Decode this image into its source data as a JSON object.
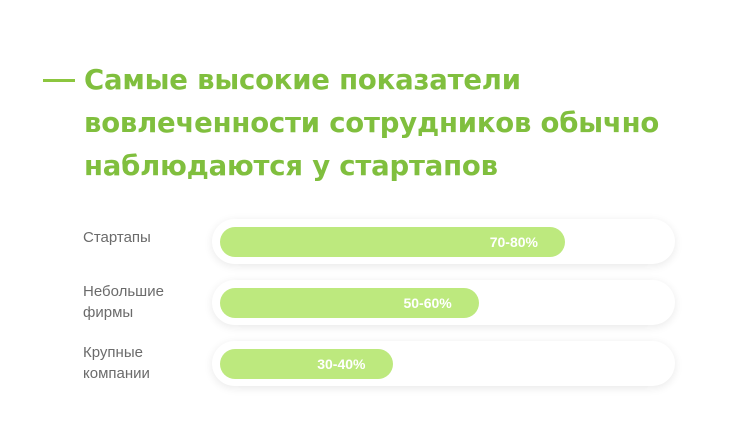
{
  "title": {
    "lines": [
      "Самые высокие показатели",
      "вовлеченности сотрудников обычно",
      "наблюдаются у стартапов"
    ]
  },
  "colors": {
    "accent": "#80bf3e",
    "bar": "#bde97e",
    "label": "#6b6b6b",
    "bar_text": "#ffffff"
  },
  "chart_data": {
    "type": "bar",
    "orientation": "horizontal",
    "categories": [
      "Стартапы",
      "Небольшие фирмы",
      "Крупные компании"
    ],
    "value_labels": [
      "70-80%",
      "50-60%",
      "30-40%"
    ],
    "values": [
      75,
      55,
      35
    ],
    "ranges": [
      [
        70,
        80
      ],
      [
        50,
        60
      ],
      [
        30,
        40
      ]
    ],
    "xlim": [
      0,
      100
    ],
    "grid": false,
    "legend": "none"
  }
}
